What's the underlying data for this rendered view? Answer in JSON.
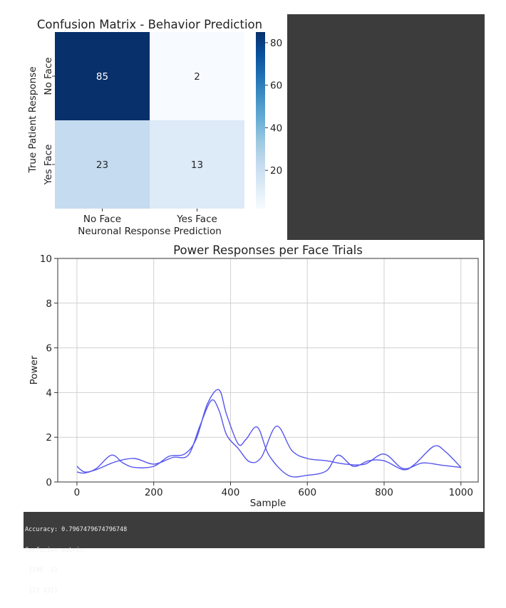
{
  "chart_data": [
    {
      "type": "heatmap",
      "title": "Confusion Matrix - Behavior Prediction",
      "xlabel": "Neuronal Response Prediction",
      "ylabel": "True Patient Response",
      "x_categories": [
        "No Face",
        "Yes Face"
      ],
      "y_categories": [
        "No Face",
        "Yes Face"
      ],
      "values": [
        [
          85,
          2
        ],
        [
          23,
          13
        ]
      ],
      "colormap": "Blues",
      "colorbar": {
        "ticks": [
          20,
          40,
          60,
          80
        ],
        "range": [
          2,
          85
        ]
      }
    },
    {
      "type": "line",
      "title": "Power Responses per Face Trials",
      "xlabel": "Sample",
      "ylabel": "Power",
      "xlim": [
        -50,
        1045
      ],
      "ylim": [
        0,
        10
      ],
      "xticks": [
        0,
        200,
        400,
        600,
        800,
        1000
      ],
      "yticks": [
        0,
        2,
        4,
        6,
        8,
        10
      ],
      "grid": true,
      "color": "#5555ee",
      "series": [
        {
          "x": [
            0,
            20,
            50,
            100,
            150,
            200,
            250,
            290,
            320,
            350,
            370,
            390,
            420,
            450,
            480,
            520,
            560,
            600,
            650,
            700,
            750,
            800,
            850,
            900,
            950,
            1000
          ],
          "y": [
            0.7,
            0.45,
            0.55,
            0.9,
            1.05,
            0.8,
            1.1,
            1.2,
            2.5,
            3.65,
            3.2,
            2.1,
            1.5,
            0.9,
            1.1,
            2.5,
            1.4,
            1.05,
            0.95,
            0.8,
            0.8,
            1.25,
            0.6,
            0.85,
            0.75,
            0.65
          ]
        },
        {
          "x": [
            0,
            20,
            50,
            90,
            120,
            150,
            200,
            240,
            280,
            310,
            340,
            370,
            390,
            420,
            440,
            470,
            500,
            550,
            600,
            650,
            680,
            720,
            760,
            800,
            850,
            880,
            930,
            960,
            1000
          ],
          "y": [
            0.45,
            0.4,
            0.6,
            1.2,
            0.85,
            0.65,
            0.7,
            1.15,
            1.25,
            1.9,
            3.5,
            4.12,
            3.0,
            1.7,
            1.9,
            2.45,
            1.2,
            0.3,
            0.3,
            0.5,
            1.2,
            0.7,
            0.95,
            0.95,
            0.55,
            0.8,
            1.6,
            1.35,
            0.65
          ]
        }
      ]
    }
  ],
  "console": {
    "lines": [
      "Accuracy: 0.7967479674796748",
      "Confusion matrix:",
      " [[85  2]",
      " [23 13]]"
    ]
  }
}
